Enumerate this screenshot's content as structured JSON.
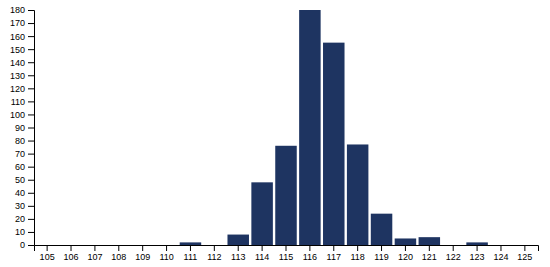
{
  "chart_data": {
    "type": "bar",
    "categories": [
      "105",
      "106",
      "107",
      "108",
      "109",
      "110",
      "111",
      "112",
      "113",
      "114",
      "115",
      "116",
      "117",
      "118",
      "119",
      "120",
      "121",
      "122",
      "123",
      "124",
      "125"
    ],
    "values": [
      0,
      0,
      0,
      0,
      0,
      0,
      2,
      0,
      8,
      48,
      76,
      180,
      155,
      77,
      24,
      5,
      6,
      0,
      2,
      0,
      0
    ],
    "color": "#1e3461",
    "ylim": [
      0,
      180
    ],
    "yticks": [
      0,
      10,
      20,
      30,
      40,
      50,
      60,
      70,
      80,
      90,
      100,
      110,
      120,
      130,
      140,
      150,
      160,
      170,
      180
    ],
    "grid": false
  }
}
